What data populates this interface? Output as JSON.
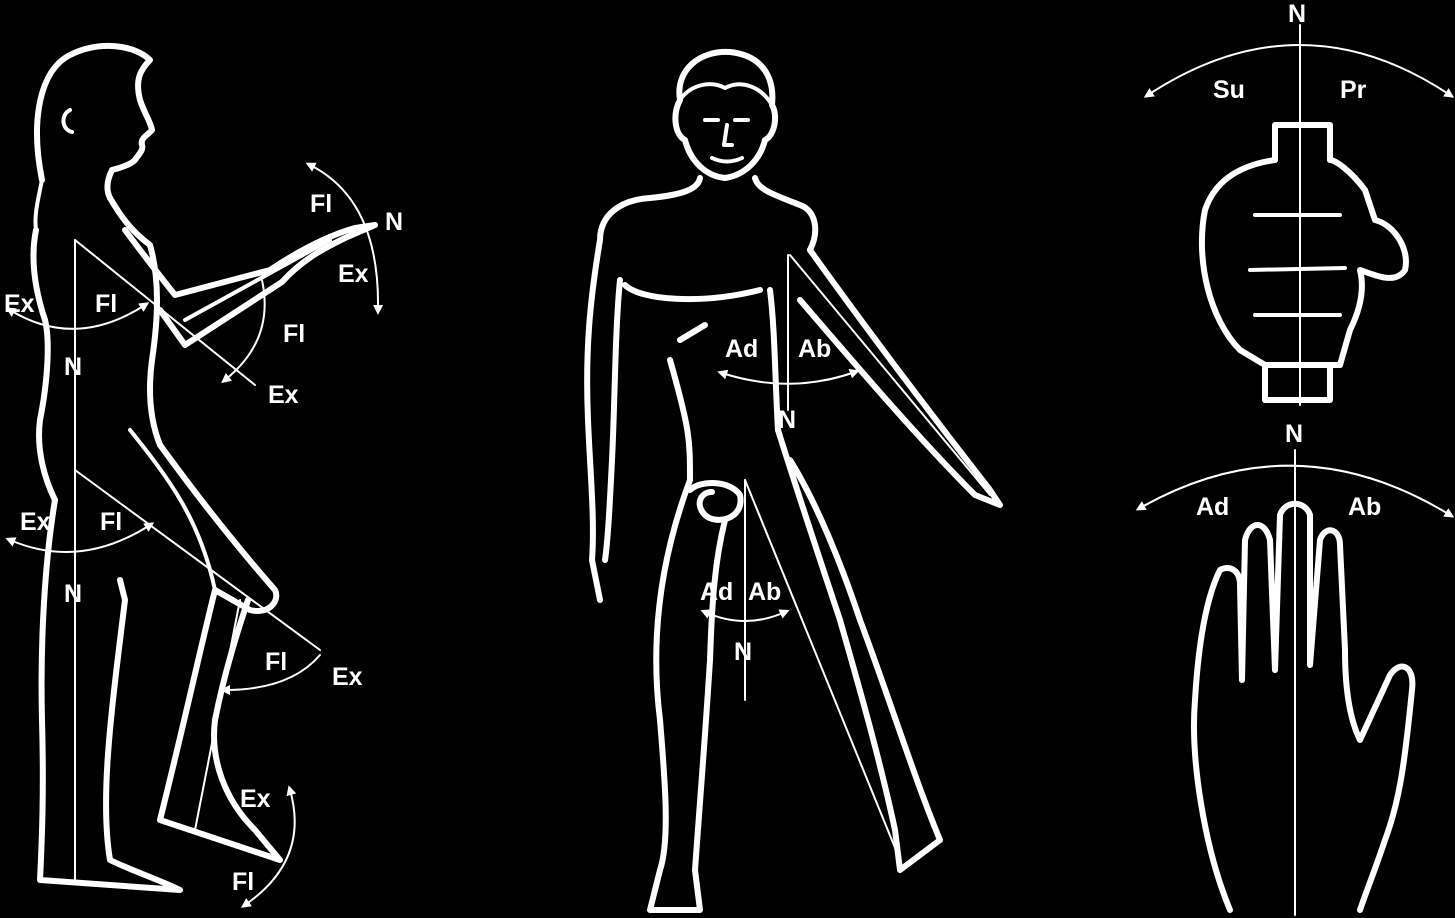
{
  "figure": {
    "background": "#000000",
    "ink": "#ffffff",
    "side_view": {
      "shoulder": {
        "extension": "Ex",
        "flexion": "Fl",
        "neutral": "N"
      },
      "elbow": {
        "flexion": "Fl",
        "neutral": "N",
        "extension": "Ex"
      },
      "forearm": {
        "flexion": "Fl",
        "extension": "Ex"
      },
      "hip": {
        "extension": "Ex",
        "flexion": "Fl",
        "neutral": "N"
      },
      "knee": {
        "flexion": "Fl",
        "extension": "Ex"
      },
      "ankle": {
        "extension": "Ex",
        "flexion": "Fl"
      }
    },
    "front_view": {
      "shoulder": {
        "adduction": "Ad",
        "abduction": "Ab",
        "neutral": "N"
      },
      "hip": {
        "adduction": "Ad",
        "abduction": "Ab",
        "neutral": "N"
      }
    },
    "hand_views": {
      "fist": {
        "neutral": "N",
        "supination": "Su",
        "pronation": "Pr"
      },
      "palm": {
        "neutral": "N",
        "adduction": "Ad",
        "abduction": "Ab"
      }
    }
  }
}
